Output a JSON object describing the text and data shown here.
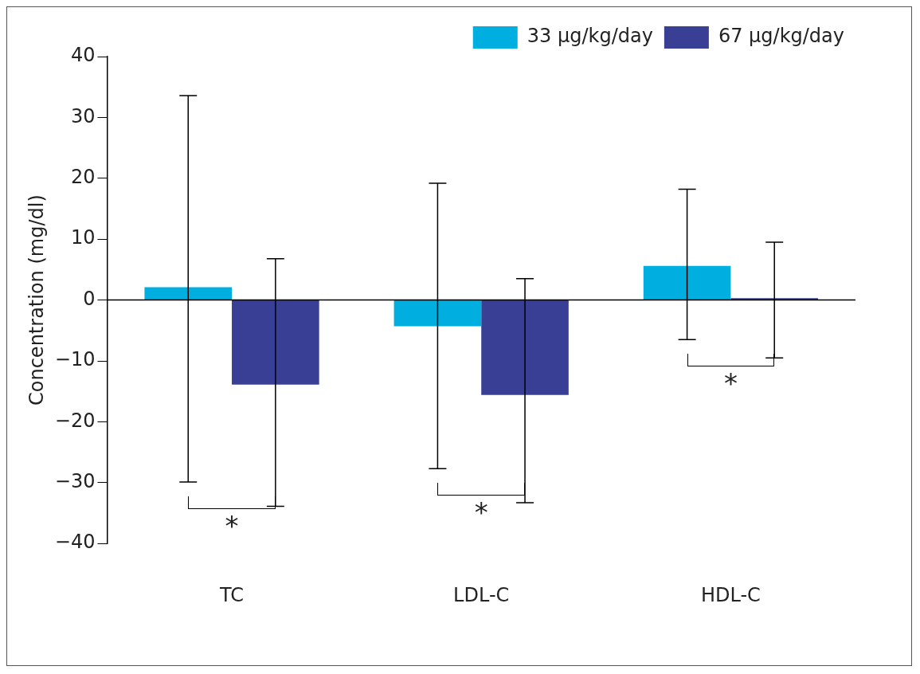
{
  "chart_data": {
    "type": "bar",
    "ylabel": "Concentration (mg/dl)",
    "categories": [
      "TC",
      "LDL-C",
      "HDL-C"
    ],
    "series": [
      {
        "name": "33 µg/kg/day",
        "color": "#00aee0",
        "values": [
          2.1,
          -4.3,
          5.6
        ],
        "errors": [
          [
            -29.9,
            33.6
          ],
          [
            -27.7,
            19.2
          ],
          [
            -6.5,
            18.2
          ]
        ]
      },
      {
        "name": "67 µg/kg/day",
        "color": "#383f95",
        "values": [
          -13.9,
          -15.6,
          0.3
        ],
        "errors": [
          [
            -33.9,
            6.8
          ],
          [
            -33.3,
            3.5
          ],
          [
            -9.5,
            9.5
          ]
        ]
      }
    ],
    "ylim": [
      -40,
      40
    ],
    "yticks": [
      -40,
      -30,
      -20,
      -10,
      0,
      10,
      20,
      30,
      40
    ],
    "grid": false,
    "legend": "top right",
    "ref_lines": [
      {
        "axis": "y",
        "value": 0
      }
    ],
    "annotations": [
      "*",
      "*",
      "*"
    ]
  }
}
